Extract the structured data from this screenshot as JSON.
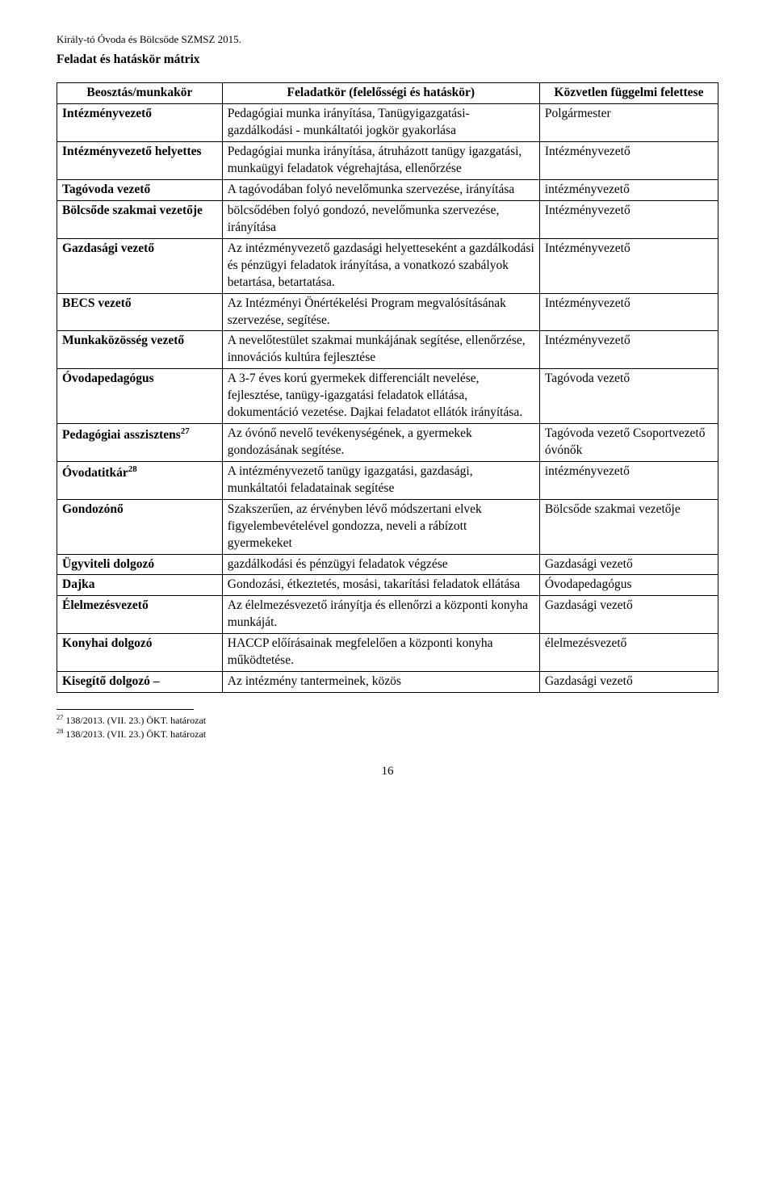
{
  "header": "Király-tó Óvoda és Bölcsőde SZMSZ 2015.",
  "sectionTitle": "Feladat és hatáskör mátrix",
  "table": {
    "headRow": {
      "col1": "Beosztás/munkakör",
      "col2": "Feladatkör (felelősségi és hatáskör)",
      "col3": "Közvetlen függelmi felettese"
    },
    "rows": [
      {
        "col1": "Intézményvezető",
        "col2": "Pedagógiai munka irányítása, Tanügyigazgatási-gazdálkodási - munkáltatói jogkör gyakorlása",
        "col3": "Polgármester"
      },
      {
        "col1": "Intézményvezető helyettes",
        "col2": "Pedagógiai munka irányítása, átruházott tanügy igazgatási, munkaügyi feladatok végrehajtása, ellenőrzése",
        "col3": "Intézményvezető"
      },
      {
        "col1": "Tagóvoda vezető",
        "col2": "A tagóvodában folyó nevelőmunka szervezése, irányítása",
        "col3": "intézményvezető"
      },
      {
        "col1": "Bölcsőde szakmai vezetője",
        "col2": "bölcsődében folyó gondozó, nevelőmunka szervezése, irányítása",
        "col3": "Intézményvezető"
      },
      {
        "col1": "Gazdasági vezető",
        "col2": "Az intézményvezető gazdasági helyetteseként a gazdálkodási és pénzügyi feladatok irányítása, a vonatkozó szabályok betartása, betartatása.",
        "col3": "Intézményvezető"
      },
      {
        "col1": "BECS vezető",
        "col2": "Az Intézményi Önértékelési Program megvalósításának szervezése, segítése.",
        "col3": "Intézményvezető"
      },
      {
        "col1": "Munkaközösség vezető",
        "col2": "A nevelőtestület szakmai munkájának segítése, ellenőrzése, innovációs kultúra fejlesztése",
        "col3": "Intézményvezető"
      },
      {
        "col1": "Óvodapedagógus",
        "col2": "A 3-7 éves korú gyermekek differenciált nevelése, fejlesztése, tanügy-igazgatási feladatok ellátása, dokumentáció vezetése. Dajkai feladatot ellátók irányítása.",
        "col3": "Tagóvoda vezető"
      },
      {
        "col1": "Pedagógiai asszisztens",
        "sup1": "27",
        "col2": "Az óvónő nevelő tevékenységének, a gyermekek gondozásának segítése.",
        "col3": "Tagóvoda vezető Csoportvezető óvónők"
      },
      {
        "col1": "Óvodatitkár",
        "sup1": "28",
        "col2": "A intézményvezető tanügy igazgatási, gazdasági, munkáltatói feladatainak segítése",
        "col3": "intézményvezető"
      },
      {
        "col1": "Gondozónő",
        "col2": "Szakszerűen, az érvényben lévő módszertani elvek figyelembevételével gondozza, neveli a rábízott gyermekeket",
        "col3": "Bölcsőde szakmai vezetője"
      },
      {
        "col1": "Ügyviteli dolgozó",
        "col2": "gazdálkodási és pénzügyi feladatok végzése",
        "col3": "Gazdasági vezető"
      },
      {
        "col1": "Dajka",
        "col2": "Gondozási, étkeztetés, mosási, takarítási feladatok ellátása",
        "col3": "Óvodapedagógus"
      },
      {
        "col1": "Élelmezésvezető",
        "col2": "Az élelmezésvezető irányítja és ellenőrzi a központi konyha munkáját.",
        "col3": "Gazdasági vezető"
      },
      {
        "col1": "Konyhai dolgozó",
        "col2": "HACCP előírásainak megfelelően a központi konyha működtetése.",
        "col3": "élelmezésvezető"
      },
      {
        "col1": "Kisegítő dolgozó –",
        "col2": "Az intézmény tantermeinek, közös",
        "col3": "Gazdasági vezető"
      }
    ]
  },
  "footnotes": [
    {
      "num": "27",
      "text": " 138/2013. (VII. 23.) ÖKT. határozat"
    },
    {
      "num": "28",
      "text": " 138/2013. (VII. 23.) ÖKT. határozat"
    }
  ],
  "pageNumber": "16"
}
